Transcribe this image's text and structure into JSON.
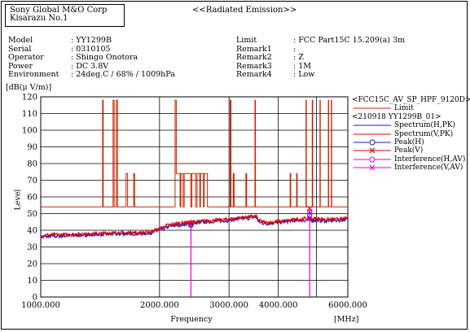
{
  "header": {
    "company_line1": "Sony Global M&O Corp",
    "company_line2": "Kisarazu No.1",
    "report_title": "<<Radiated Emission>>"
  },
  "info_left": [
    {
      "label": "Model",
      "value": ": YY1299B"
    },
    {
      "label": "Serial",
      "value": ": 0310105"
    },
    {
      "label": "Operator",
      "value": ": Shingo Onotora"
    },
    {
      "label": "Power",
      "value": ": DC 3.8V"
    },
    {
      "label": "Environment",
      "value": ": 24deg.C / 68% / 1009hPa"
    }
  ],
  "info_right": [
    {
      "label": "Limit",
      "value": ": FCC Part15C 15.209(a) 3m"
    },
    {
      "label": "Remark1",
      "value": ":"
    },
    {
      "label": "Remark2",
      "value": ": Z"
    },
    {
      "label": "Remark3",
      "value": ": 1M"
    },
    {
      "label": "Remark4",
      "value": ": Low"
    }
  ],
  "colors": {
    "limit": "#cc2200",
    "spectrum_h": "#1a1acc",
    "spectrum_v": "#e60000",
    "peak_h": "#1a1acc",
    "peak_v": "#e60000",
    "interference": "#e000e0"
  },
  "legend": {
    "group1": "<FCC15C_AV_SP_HPF_9120D>",
    "limit": "Limit",
    "group2": "<210918 YY1299B_01>",
    "spectrum_h": "Spectrum(H,PK)",
    "spectrum_v": "Spectrum(V,PK)",
    "peak_h": "Peak(H)",
    "peak_v": "Peak(V)",
    "interf_h": "Interference(H,AV)",
    "interf_v": "Interference(V,AV)"
  },
  "chart_data": {
    "type": "line",
    "xlabel": "Frequency",
    "xunit": "[MHz]",
    "ylabel": "Level",
    "yunit": "[dB(μ V/m)]",
    "x_scale": "log",
    "xlim": [
      1000,
      6000
    ],
    "ylim": [
      0,
      120
    ],
    "x_ticks": [
      1000,
      2000,
      3000,
      4000,
      6000
    ],
    "x_tick_labels": [
      "1000.000",
      "2000.000",
      "3000.000",
      "4000.000",
      "6000.000"
    ],
    "y_ticks": [
      0,
      10,
      20,
      30,
      40,
      50,
      60,
      70,
      80,
      90,
      100,
      110,
      120
    ],
    "y_tick_labels": [
      "0",
      "10",
      "20",
      "30",
      "40",
      "50",
      "60",
      "70",
      "80",
      "90",
      "100",
      "110",
      "120"
    ],
    "grid": true,
    "legend_position": "right",
    "limit_line": {
      "name": "Limit",
      "x": [
        1000,
        1000,
        1435,
        1435,
        1440,
        1440,
        1525,
        1525,
        1535,
        1535,
        1555,
        1555,
        1565,
        1565,
        1645,
        1645,
        1660,
        1660,
        1720,
        1720,
        1730,
        1730,
        2190,
        2190,
        2205,
        2205,
        2255,
        2255,
        2265,
        2265,
        2295,
        2295,
        2310,
        2310,
        2400,
        2400,
        2415,
        2415,
        2470,
        2470,
        2490,
        2490,
        2530,
        2530,
        2540,
        2540,
        2585,
        2585,
        2595,
        2595,
        2645,
        2645,
        3020,
        3020,
        3035,
        3035,
        3075,
        3075,
        3090,
        3090,
        3310,
        3310,
        3325,
        3325,
        3490,
        3490,
        3500,
        3500,
        4285,
        4285,
        4300,
        4300,
        4450,
        4450,
        4465,
        4465,
        4700,
        4700,
        4710,
        4710,
        4875,
        4875,
        4890,
        4890,
        5100,
        5100,
        5110,
        5110,
        5355,
        5355,
        5365,
        5365,
        5450,
        5450,
        5460,
        5460,
        6000
      ],
      "y": [
        54,
        54,
        54,
        118,
        118,
        54,
        54,
        118,
        118,
        54,
        54,
        118,
        118,
        54,
        54,
        74,
        74,
        54,
        54,
        74,
        74,
        54,
        54,
        118,
        118,
        74,
        74,
        54,
        54,
        74,
        74,
        54,
        54,
        74,
        74,
        54,
        54,
        74,
        74,
        54,
        54,
        74,
        74,
        54,
        54,
        74,
        74,
        54,
        54,
        74,
        74,
        54,
        54,
        118,
        118,
        54,
        54,
        74,
        74,
        54,
        54,
        74,
        74,
        54,
        54,
        118,
        118,
        54,
        54,
        74,
        74,
        54,
        54,
        74,
        74,
        54,
        54,
        118,
        118,
        54,
        54,
        118,
        118,
        54,
        54,
        118,
        118,
        54,
        54,
        118,
        118,
        54,
        54,
        118,
        118,
        54,
        54
      ]
    },
    "series": [
      {
        "name": "Spectrum(H,PK)",
        "x": [
          1000,
          1200,
          1400,
          1600,
          1800,
          1900,
          2000,
          2100,
          2200,
          2400,
          2600,
          2800,
          3000,
          3200,
          3400,
          3520,
          3560,
          3700,
          3900,
          4100,
          4300,
          4500,
          4700,
          5000,
          5300,
          5600,
          6000
        ],
        "y": [
          36,
          37,
          37.5,
          38,
          38,
          38.5,
          40,
          42,
          43,
          44,
          45,
          45.5,
          46,
          47,
          47.5,
          48,
          45,
          44,
          44.5,
          45,
          45.5,
          46,
          46,
          46,
          45.5,
          46,
          46.5
        ]
      },
      {
        "name": "Spectrum(V,PK)",
        "x": [
          1000,
          1200,
          1400,
          1600,
          1800,
          1900,
          2000,
          2100,
          2200,
          2400,
          2600,
          2800,
          3000,
          3200,
          3400,
          3520,
          3560,
          3700,
          3900,
          4100,
          4300,
          4500,
          4700,
          5000,
          5300,
          5600,
          6000
        ],
        "y": [
          37,
          37.5,
          38,
          38.5,
          38.5,
          39,
          41,
          43,
          44,
          45,
          45.5,
          46,
          46.5,
          47.5,
          48,
          48.5,
          46,
          44.5,
          45,
          45.5,
          46,
          46.5,
          47,
          47,
          46.5,
          46.5,
          47
        ]
      }
    ],
    "peaks": {
      "peak_h": [
        {
          "x": 2402,
          "y": 43
        },
        {
          "x": 4804,
          "y": 49
        }
      ],
      "peak_v": [
        {
          "x": 2402,
          "y": 44
        },
        {
          "x": 4804,
          "y": 53
        }
      ],
      "interference": [
        {
          "x": 2402,
          "y": 43.5
        },
        {
          "x": 4804,
          "y": 51
        }
      ]
    }
  }
}
